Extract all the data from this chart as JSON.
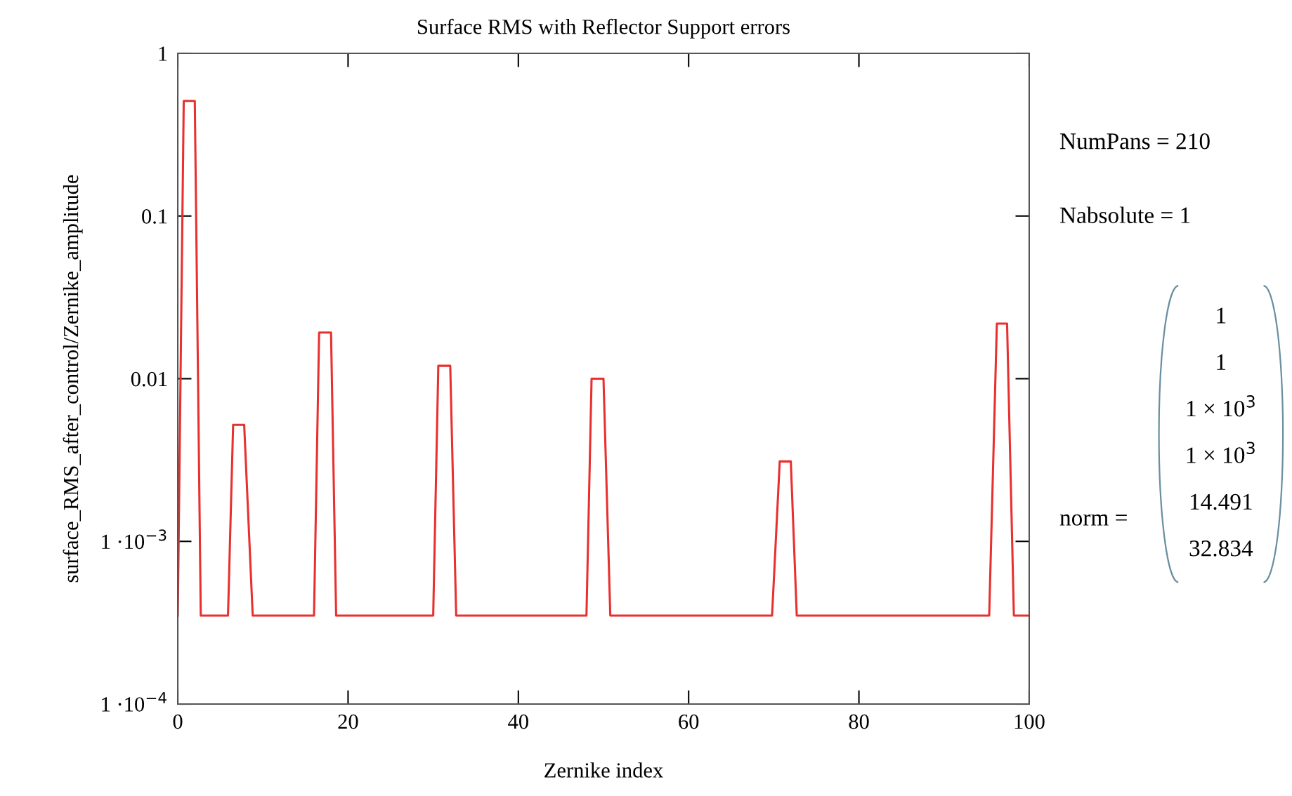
{
  "chart_data": {
    "type": "line",
    "title": "Surface RMS with Reflector Support errors",
    "xlabel": "Zernike index",
    "ylabel": "surface_RMS_after_control/Zernike_amplitude",
    "log": "y",
    "grid": false,
    "marker": "none",
    "line_style": "solid",
    "xlim": [
      0,
      100
    ],
    "xticks": [
      0,
      20,
      40,
      60,
      80,
      100
    ],
    "ylim": [
      0.0001,
      1
    ],
    "yticks": [
      {
        "value": 1,
        "label": "1"
      },
      {
        "value": 0.1,
        "label": "0.1"
      },
      {
        "value": 0.01,
        "label": "0.01"
      },
      {
        "value": 0.001,
        "label": "1 ·10$^{−3}$"
      },
      {
        "value": 0.0001,
        "label": "1 ·10$^{−4}$"
      }
    ],
    "x": [
      0,
      0.7,
      2.0,
      2.7,
      5.9,
      6.5,
      7.8,
      8.8,
      16.0,
      16.6,
      18.0,
      18.6,
      30.0,
      30.6,
      32.0,
      32.7,
      48.0,
      48.6,
      50.0,
      50.8,
      69.8,
      70.7,
      72.0,
      72.7,
      95.3,
      96.2,
      97.4,
      98.2,
      100
    ],
    "series": [
      {
        "color": "#e8302f",
        "values": [
          0.00035,
          0.51,
          0.51,
          0.00035,
          0.00035,
          0.0052,
          0.0052,
          0.00035,
          0.00035,
          0.0192,
          0.0192,
          0.00035,
          0.00035,
          0.012,
          0.012,
          0.00035,
          0.00035,
          0.01,
          0.01,
          0.00035,
          0.00035,
          0.0031,
          0.0031,
          0.00035,
          0.00035,
          0.0218,
          0.0218,
          0.00035,
          0.00035
        ]
      }
    ],
    "annotations": [
      "NumPans = 210",
      "Nabsolute = 1",
      "norm =",
      "1",
      "1",
      "1 × 10$^{3}$",
      "1 × 10$^{3}$",
      "14.491",
      "32.834"
    ]
  }
}
